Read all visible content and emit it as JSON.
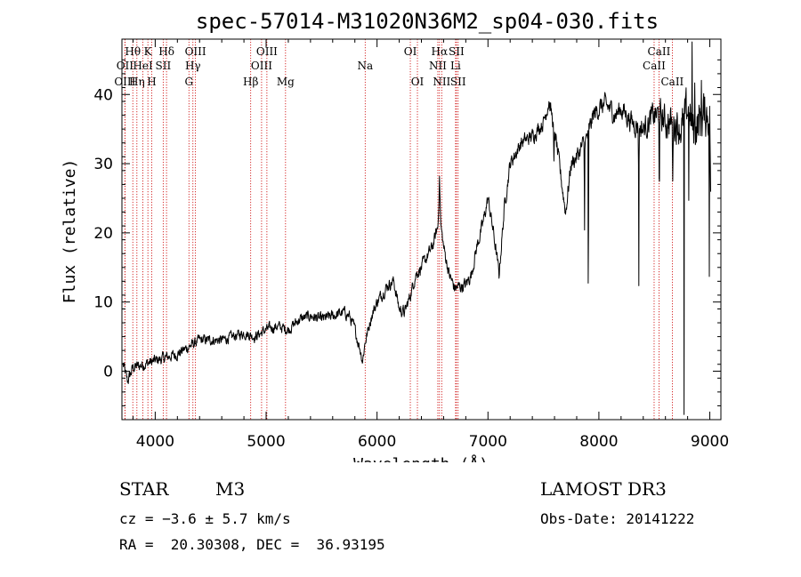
{
  "chart_data": {
    "type": "line",
    "title": "spec-57014-M31020N36M2_sp04-030.fits",
    "xlabel": "Wavelength (Å)",
    "ylabel": "Flux (relative)",
    "xlim": [
      3700,
      9100
    ],
    "ylim": [
      -7,
      48
    ],
    "xticks": [
      4000,
      5000,
      6000,
      7000,
      8000,
      9000
    ],
    "yticks": [
      0,
      10,
      20,
      30,
      40
    ],
    "xtick_labels": [
      "4000",
      "5000",
      "6000",
      "7000",
      "8000",
      "9000"
    ],
    "ytick_labels": [
      "0",
      "10",
      "20",
      "30",
      "40"
    ],
    "series": [
      {
        "name": "spectrum",
        "color": "#000000",
        "anchors": [
          [
            3710,
            1
          ],
          [
            3750,
            -1.5
          ],
          [
            3800,
            0.5
          ],
          [
            3900,
            1
          ],
          [
            4000,
            1.5
          ],
          [
            4100,
            2
          ],
          [
            4200,
            2.5
          ],
          [
            4300,
            3.5
          ],
          [
            4400,
            4.5
          ],
          [
            4500,
            4.5
          ],
          [
            4600,
            4.5
          ],
          [
            4700,
            5
          ],
          [
            4800,
            5.5
          ],
          [
            4900,
            5
          ],
          [
            5000,
            6
          ],
          [
            5100,
            6.5
          ],
          [
            5200,
            6
          ],
          [
            5300,
            7.5
          ],
          [
            5400,
            8
          ],
          [
            5500,
            7.5
          ],
          [
            5600,
            8
          ],
          [
            5700,
            8.5
          ],
          [
            5750,
            8
          ],
          [
            5800,
            6
          ],
          [
            5850,
            3
          ],
          [
            5870,
            1.5
          ],
          [
            5890,
            4
          ],
          [
            5950,
            8
          ],
          [
            6000,
            10
          ],
          [
            6100,
            12.5
          ],
          [
            6150,
            13
          ],
          [
            6200,
            9
          ],
          [
            6250,
            8.5
          ],
          [
            6300,
            11
          ],
          [
            6350,
            14
          ],
          [
            6400,
            15
          ],
          [
            6450,
            16.5
          ],
          [
            6500,
            18
          ],
          [
            6550,
            21
          ],
          [
            6563,
            28
          ],
          [
            6575,
            21
          ],
          [
            6600,
            18
          ],
          [
            6650,
            14
          ],
          [
            6700,
            12
          ],
          [
            6800,
            12.5
          ],
          [
            6850,
            14
          ],
          [
            6900,
            18
          ],
          [
            6950,
            21
          ],
          [
            7000,
            25
          ],
          [
            7050,
            20
          ],
          [
            7100,
            14
          ],
          [
            7150,
            24
          ],
          [
            7200,
            30
          ],
          [
            7300,
            33
          ],
          [
            7400,
            34
          ],
          [
            7500,
            36
          ],
          [
            7550,
            39
          ],
          [
            7600,
            35
          ],
          [
            7650,
            29
          ],
          [
            7700,
            23
          ],
          [
            7750,
            30
          ],
          [
            7800,
            31
          ],
          [
            7900,
            34
          ],
          [
            7950,
            37
          ],
          [
            8000,
            38
          ],
          [
            8050,
            38.5
          ],
          [
            8100,
            38
          ],
          [
            8150,
            37
          ],
          [
            8200,
            38
          ],
          [
            8250,
            37
          ],
          [
            8300,
            36
          ],
          [
            8400,
            35
          ],
          [
            8500,
            37
          ],
          [
            8550,
            37
          ],
          [
            8600,
            36
          ],
          [
            8700,
            36
          ],
          [
            8750,
            35
          ],
          [
            8800,
            38
          ],
          [
            8850,
            35
          ],
          [
            8900,
            36
          ],
          [
            8950,
            37
          ],
          [
            9000,
            38
          ],
          [
            9010,
            20
          ]
        ],
        "noise": [
          [
            3700,
            1.0
          ],
          [
            4600,
            0.8
          ],
          [
            5500,
            0.9
          ],
          [
            6500,
            1.0
          ],
          [
            7500,
            1.2
          ],
          [
            8400,
            1.8
          ],
          [
            8700,
            3.0
          ],
          [
            9010,
            4.0
          ]
        ],
        "absorption_lines": [
          {
            "wavelength": 7905,
            "depth": 30,
            "width": 3
          },
          {
            "wavelength": 7870,
            "depth": 18,
            "width": 2
          },
          {
            "wavelength": 8360,
            "depth": 22,
            "width": 3
          },
          {
            "wavelength": 8545,
            "depth": 12,
            "width": 4
          },
          {
            "wavelength": 8665,
            "depth": 10,
            "width": 4
          },
          {
            "wavelength": 8768,
            "depth": 45,
            "width": 2
          },
          {
            "wavelength": 8810,
            "depth": 12,
            "width": 2
          },
          {
            "wavelength": 8995,
            "depth": 35,
            "width": 2
          },
          {
            "wavelength": 7595,
            "depth": 6,
            "width": 6
          }
        ],
        "emission_spikes": [
          {
            "wavelength": 8840,
            "height": 10
          },
          {
            "wavelength": 8865,
            "height": 8
          },
          {
            "wavelength": 8925,
            "height": 9
          }
        ]
      }
    ],
    "line_markers": [
      {
        "label": "Hθ",
        "wavelength": 3798,
        "row": 1
      },
      {
        "label": "OII",
        "wavelength": 3727,
        "row": 2
      },
      {
        "label": "OIII",
        "wavelength": 3727,
        "row": 3
      },
      {
        "label": "Hη",
        "wavelength": 3835,
        "row": 3
      },
      {
        "label": "K",
        "wavelength": 3934,
        "row": 1
      },
      {
        "label": "HeI",
        "wavelength": 3889,
        "row": 2
      },
      {
        "label": "SII",
        "wavelength": 4072,
        "row": 2
      },
      {
        "label": "H",
        "wavelength": 3969,
        "row": 3
      },
      {
        "label": "Hδ",
        "wavelength": 4102,
        "row": 1
      },
      {
        "label": "OIII",
        "wavelength": 4363,
        "row": 1
      },
      {
        "label": "Hγ",
        "wavelength": 4340,
        "row": 2
      },
      {
        "label": "G",
        "wavelength": 4304,
        "row": 3
      },
      {
        "label": "Hβ",
        "wavelength": 4861,
        "row": 3
      },
      {
        "label": "OIII",
        "wavelength": 5007,
        "row": 1
      },
      {
        "label": "OIII",
        "wavelength": 4959,
        "row": 2
      },
      {
        "label": "Mg",
        "wavelength": 5175,
        "row": 3
      },
      {
        "label": "Na",
        "wavelength": 5893,
        "row": 2
      },
      {
        "label": "OI",
        "wavelength": 6300,
        "row": 1
      },
      {
        "label": "OI",
        "wavelength": 6364,
        "row": 3
      },
      {
        "label": "Hα",
        "wavelength": 6563,
        "row": 1
      },
      {
        "label": "SII",
        "wavelength": 6716,
        "row": 1
      },
      {
        "label": "NII",
        "wavelength": 6548,
        "row": 2
      },
      {
        "label": "Li",
        "wavelength": 6708,
        "row": 2
      },
      {
        "label": "NII",
        "wavelength": 6583,
        "row": 3
      },
      {
        "label": "SII",
        "wavelength": 6731,
        "row": 3
      },
      {
        "label": "CaII",
        "wavelength": 8498,
        "row": 2
      },
      {
        "label": "CaII",
        "wavelength": 8542,
        "row": 1
      },
      {
        "label": "CaII",
        "wavelength": 8662,
        "row": 3
      }
    ],
    "marker_color": "#cc0000"
  },
  "info": {
    "class_label": "STAR",
    "subclass": "M3",
    "survey": "LAMOST DR3",
    "cz": "cz = −3.6 ± 5.7 km/s",
    "obs_date": "Obs-Date: 20141222",
    "coords": "RA =  20.30308, DEC =  36.93195"
  }
}
